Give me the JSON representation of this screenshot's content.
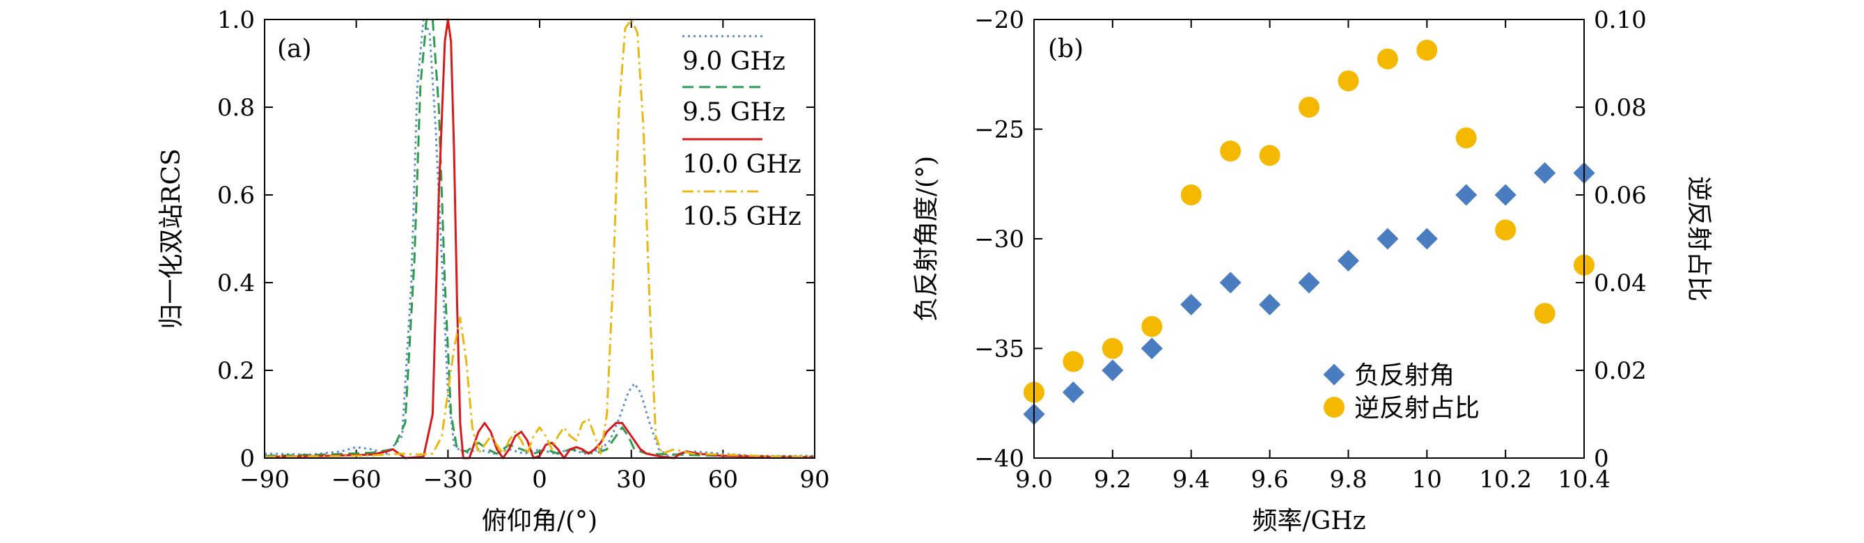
{
  "chart_data": [
    {
      "type": "line",
      "panel_label": "(a)",
      "xlabel": "俯仰角/(°)",
      "ylabel": "归一化双站RCS",
      "xlim": [
        -90,
        90
      ],
      "ylim": [
        0,
        1.0
      ],
      "x_ticks": [
        -90,
        -60,
        -30,
        0,
        30,
        60,
        90
      ],
      "x_tick_labels": [
        "−90",
        "−60",
        "−30",
        "0",
        "30",
        "60",
        "90"
      ],
      "y_ticks": [
        0,
        0.2,
        0.4,
        0.6,
        0.8,
        1.0
      ],
      "y_tick_labels": [
        "0",
        "0.2",
        "0.4",
        "0.6",
        "0.8",
        "1.0"
      ],
      "legend_position": "top-right",
      "series": [
        {
          "name": "9.0 GHz",
          "color": "#5B8FC9",
          "dash": "dotted",
          "points": [
            [
              -90,
              0.01
            ],
            [
              -75,
              0.008
            ],
            [
              -65,
              0.015
            ],
            [
              -60,
              0.025
            ],
            [
              -55,
              0.02
            ],
            [
              -50,
              0.01
            ],
            [
              -45,
              0.05
            ],
            [
              -42,
              0.4
            ],
            [
              -40,
              0.85
            ],
            [
              -38,
              1.0
            ],
            [
              -36,
              0.97
            ],
            [
              -34,
              0.75
            ],
            [
              -32,
              0.45
            ],
            [
              -30,
              0.15
            ],
            [
              -28,
              0.03
            ],
            [
              -25,
              0.01
            ],
            [
              -20,
              0.02
            ],
            [
              -15,
              0.01
            ],
            [
              -10,
              0.02
            ],
            [
              -5,
              0.01
            ],
            [
              0,
              0.02
            ],
            [
              5,
              0.01
            ],
            [
              10,
              0.02
            ],
            [
              15,
              0.01
            ],
            [
              20,
              0.02
            ],
            [
              23,
              0.04
            ],
            [
              26,
              0.09
            ],
            [
              29,
              0.15
            ],
            [
              31,
              0.17
            ],
            [
              33,
              0.15
            ],
            [
              36,
              0.08
            ],
            [
              39,
              0.02
            ],
            [
              42,
              0.005
            ],
            [
              50,
              0.015
            ],
            [
              60,
              0.01
            ],
            [
              70,
              0.005
            ],
            [
              90,
              0.005
            ]
          ]
        },
        {
          "name": "9.5 GHz",
          "color": "#2E9B4E",
          "dash": "dashed",
          "points": [
            [
              -90,
              0.005
            ],
            [
              -70,
              0.008
            ],
            [
              -55,
              0.012
            ],
            [
              -48,
              0.02
            ],
            [
              -44,
              0.08
            ],
            [
              -41,
              0.45
            ],
            [
              -39,
              0.85
            ],
            [
              -37,
              1.0
            ],
            [
              -35,
              1.0
            ],
            [
              -33,
              0.8
            ],
            [
              -31,
              0.4
            ],
            [
              -29,
              0.1
            ],
            [
              -27,
              0.02
            ],
            [
              -24,
              0.015
            ],
            [
              -20,
              0.035
            ],
            [
              -17,
              0.02
            ],
            [
              -14,
              0.01
            ],
            [
              -10,
              0.03
            ],
            [
              -6,
              0.02
            ],
            [
              -2,
              0.01
            ],
            [
              2,
              0.02
            ],
            [
              6,
              0.01
            ],
            [
              10,
              0.02
            ],
            [
              14,
              0.015
            ],
            [
              18,
              0.01
            ],
            [
              22,
              0.02
            ],
            [
              25,
              0.05
            ],
            [
              27,
              0.07
            ],
            [
              29,
              0.05
            ],
            [
              31,
              0.02
            ],
            [
              35,
              0.01
            ],
            [
              45,
              0.008
            ],
            [
              60,
              0.005
            ],
            [
              90,
              0.003
            ]
          ]
        },
        {
          "name": "10.0 GHz",
          "color": "#D7191C",
          "dash": "solid",
          "points": [
            [
              -90,
              0.003
            ],
            [
              -70,
              0.005
            ],
            [
              -55,
              0.008
            ],
            [
              -50,
              0.015
            ],
            [
              -48,
              0.02
            ],
            [
              -46,
              0.01
            ],
            [
              -44,
              0.0
            ],
            [
              -38,
              0.003
            ],
            [
              -35,
              0.1
            ],
            [
              -33,
              0.6
            ],
            [
              -31,
              0.95
            ],
            [
              -30,
              1.0
            ],
            [
              -29,
              0.95
            ],
            [
              -28,
              0.7
            ],
            [
              -27,
              0.35
            ],
            [
              -26,
              0.08
            ],
            [
              -25,
              0.0
            ],
            [
              -23,
              0.0
            ],
            [
              -22,
              0.02
            ],
            [
              -20,
              0.06
            ],
            [
              -18,
              0.08
            ],
            [
              -16,
              0.06
            ],
            [
              -14,
              0.02
            ],
            [
              -12,
              0.0
            ],
            [
              -10,
              0.02
            ],
            [
              -8,
              0.05
            ],
            [
              -6,
              0.06
            ],
            [
              -4,
              0.04
            ],
            [
              -2,
              0.0
            ],
            [
              0,
              0.005
            ],
            [
              2,
              0.03
            ],
            [
              4,
              0.035
            ],
            [
              6,
              0.02
            ],
            [
              8,
              0.0
            ],
            [
              10,
              0.02
            ],
            [
              12,
              0.025
            ],
            [
              14,
              0.02
            ],
            [
              16,
              0.01
            ],
            [
              18,
              0.02
            ],
            [
              20,
              0.035
            ],
            [
              22,
              0.06
            ],
            [
              25,
              0.08
            ],
            [
              27,
              0.08
            ],
            [
              29,
              0.06
            ],
            [
              31,
              0.04
            ],
            [
              33,
              0.02
            ],
            [
              35,
              0.01
            ],
            [
              40,
              0.003
            ],
            [
              44,
              0.0
            ],
            [
              46,
              0.01
            ],
            [
              48,
              0.015
            ],
            [
              52,
              0.01
            ],
            [
              60,
              0.005
            ],
            [
              75,
              0.003
            ],
            [
              90,
              0.002
            ]
          ]
        },
        {
          "name": "10.5 GHz",
          "color": "#E8B812",
          "dash": "dashdot",
          "points": [
            [
              -90,
              0.003
            ],
            [
              -70,
              0.004
            ],
            [
              -55,
              0.006
            ],
            [
              -45,
              0.01
            ],
            [
              -40,
              0.008
            ],
            [
              -35,
              0.01
            ],
            [
              -32,
              0.05
            ],
            [
              -30,
              0.15
            ],
            [
              -28,
              0.25
            ],
            [
              -26,
              0.32
            ],
            [
              -24,
              0.22
            ],
            [
              -22,
              0.07
            ],
            [
              -20,
              0.01
            ],
            [
              -18,
              0.03
            ],
            [
              -16,
              0.05
            ],
            [
              -14,
              0.03
            ],
            [
              -12,
              0.01
            ],
            [
              -10,
              0.04
            ],
            [
              -8,
              0.06
            ],
            [
              -6,
              0.04
            ],
            [
              -4,
              0.01
            ],
            [
              -2,
              0.05
            ],
            [
              0,
              0.07
            ],
            [
              2,
              0.05
            ],
            [
              4,
              0.02
            ],
            [
              6,
              0.05
            ],
            [
              8,
              0.07
            ],
            [
              10,
              0.05
            ],
            [
              12,
              0.04
            ],
            [
              14,
              0.08
            ],
            [
              16,
              0.09
            ],
            [
              18,
              0.05
            ],
            [
              20,
              0.01
            ],
            [
              22,
              0.1
            ],
            [
              24,
              0.4
            ],
            [
              26,
              0.8
            ],
            [
              28,
              0.98
            ],
            [
              30,
              1.0
            ],
            [
              32,
              0.97
            ],
            [
              34,
              0.75
            ],
            [
              36,
              0.35
            ],
            [
              38,
              0.05
            ],
            [
              40,
              0.01
            ],
            [
              44,
              0.02
            ],
            [
              50,
              0.01
            ],
            [
              60,
              0.008
            ],
            [
              75,
              0.004
            ],
            [
              90,
              0.003
            ]
          ]
        }
      ]
    },
    {
      "type": "scatter",
      "panel_label": "(b)",
      "xlabel": "频率/GHz",
      "ylabel_left": "负反射角度/(°)",
      "ylabel_right": "逆反射占比",
      "xlim": [
        9.0,
        10.4
      ],
      "ylim_left": [
        -40,
        -20
      ],
      "ylim_right": [
        0,
        0.1
      ],
      "x_ticks": [
        9.0,
        9.2,
        9.4,
        9.6,
        9.8,
        10.0,
        10.2,
        10.4
      ],
      "x_tick_labels": [
        "9.0",
        "9.2",
        "9.4",
        "9.6",
        "9.8",
        "10",
        "10.2",
        "10.4"
      ],
      "y_ticks_left": [
        -40,
        -35,
        -30,
        -25,
        -20
      ],
      "y_tick_labels_left": [
        "−40",
        "−35",
        "−30",
        "−25",
        "−20"
      ],
      "y_ticks_right": [
        0,
        0.02,
        0.04,
        0.06,
        0.08,
        0.1
      ],
      "y_tick_labels_right": [
        "0",
        "0.02",
        "0.04",
        "0.06",
        "0.08",
        "0.10"
      ],
      "legend_position": "lower-center",
      "series": [
        {
          "name": "负反射角",
          "axis": "left",
          "marker": "diamond",
          "color": "#4A7CC0",
          "x": [
            9.0,
            9.1,
            9.2,
            9.3,
            9.4,
            9.5,
            9.6,
            9.7,
            9.8,
            9.9,
            10.0,
            10.1,
            10.2,
            10.3,
            10.4
          ],
          "y": [
            -38,
            -37,
            -36,
            -35,
            -33,
            -32,
            -33,
            -32,
            -31,
            -30,
            -30,
            -28,
            -28,
            -27,
            -27
          ]
        },
        {
          "name": "逆反射占比",
          "axis": "right",
          "marker": "circle",
          "color": "#F5B800",
          "x": [
            9.0,
            9.1,
            9.2,
            9.3,
            9.4,
            9.5,
            9.6,
            9.7,
            9.8,
            9.9,
            10.0,
            10.1,
            10.2,
            10.3,
            10.4
          ],
          "y": [
            0.015,
            0.022,
            0.025,
            0.03,
            0.06,
            0.07,
            0.069,
            0.08,
            0.086,
            0.091,
            0.093,
            0.073,
            0.052,
            0.033,
            0.044
          ]
        }
      ]
    }
  ]
}
